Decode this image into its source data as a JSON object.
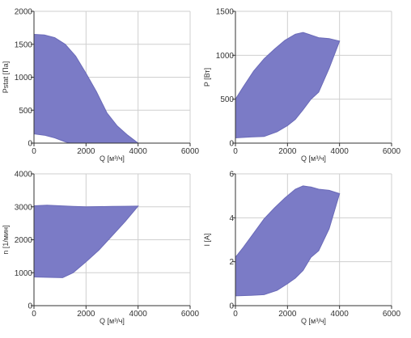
{
  "style": {
    "region_fill": "#7b7bc6",
    "region_stroke": "#6a6ab8",
    "grid": "#cfcfcf",
    "axis": "#333333"
  },
  "chart_data": [
    {
      "type": "area",
      "xlabel": "Q [м³/ч]",
      "ylabel": "Pstat [Па]",
      "xlim": [
        0,
        6000
      ],
      "ylim": [
        0,
        2000
      ],
      "xticks": [
        0,
        2000,
        4000,
        6000
      ],
      "yticks": [
        0,
        500,
        1000,
        1500,
        2000
      ],
      "grid": true,
      "region": [
        [
          0,
          1650
        ],
        [
          400,
          1640
        ],
        [
          800,
          1600
        ],
        [
          1200,
          1500
        ],
        [
          1600,
          1320
        ],
        [
          2000,
          1060
        ],
        [
          2400,
          780
        ],
        [
          2800,
          460
        ],
        [
          3200,
          260
        ],
        [
          3600,
          120
        ],
        [
          4000,
          0
        ],
        [
          3000,
          0
        ],
        [
          2400,
          0
        ],
        [
          1800,
          0
        ],
        [
          1400,
          0
        ],
        [
          1200,
          20
        ],
        [
          800,
          80
        ],
        [
          400,
          120
        ],
        [
          0,
          140
        ]
      ]
    },
    {
      "type": "area",
      "xlabel": "Q [м³/ч]",
      "ylabel": "P [Вт]",
      "xlim": [
        0,
        6000
      ],
      "ylim": [
        0,
        1500
      ],
      "xticks": [
        0,
        2000,
        4000,
        6000
      ],
      "yticks": [
        0,
        500,
        1000,
        1500
      ],
      "grid": true,
      "region": [
        [
          0,
          500
        ],
        [
          300,
          640
        ],
        [
          700,
          820
        ],
        [
          1100,
          960
        ],
        [
          1500,
          1070
        ],
        [
          1900,
          1170
        ],
        [
          2300,
          1240
        ],
        [
          2600,
          1260
        ],
        [
          2900,
          1230
        ],
        [
          3200,
          1200
        ],
        [
          3600,
          1190
        ],
        [
          4000,
          1160
        ],
        [
          3600,
          850
        ],
        [
          3200,
          580
        ],
        [
          2900,
          500
        ],
        [
          2600,
          380
        ],
        [
          2300,
          270
        ],
        [
          2000,
          200
        ],
        [
          1600,
          130
        ],
        [
          1100,
          75
        ],
        [
          600,
          70
        ],
        [
          0,
          60
        ]
      ]
    },
    {
      "type": "area",
      "xlabel": "Q [м³/ч]",
      "ylabel": "n [1/мин]",
      "xlim": [
        0,
        6000
      ],
      "ylim": [
        0,
        4000
      ],
      "xticks": [
        0,
        2000,
        4000,
        6000
      ],
      "yticks": [
        0,
        1000,
        2000,
        3000,
        4000
      ],
      "grid": true,
      "region": [
        [
          0,
          3030
        ],
        [
          500,
          3050
        ],
        [
          1000,
          3030
        ],
        [
          1500,
          3010
        ],
        [
          2000,
          3000
        ],
        [
          2500,
          3005
        ],
        [
          3000,
          3010
        ],
        [
          3500,
          3015
        ],
        [
          4000,
          3020
        ],
        [
          3500,
          2550
        ],
        [
          3000,
          2120
        ],
        [
          2500,
          1690
        ],
        [
          2000,
          1330
        ],
        [
          1500,
          1000
        ],
        [
          1100,
          850
        ],
        [
          600,
          860
        ],
        [
          0,
          870
        ]
      ]
    },
    {
      "type": "area",
      "xlabel": "Q [м³/ч]",
      "ylabel": "I [A]",
      "xlim": [
        0,
        6000
      ],
      "ylim": [
        0,
        6
      ],
      "xticks": [
        0,
        2000,
        4000,
        6000
      ],
      "yticks": [
        0,
        2,
        4,
        6
      ],
      "grid": true,
      "region": [
        [
          0,
          2.2
        ],
        [
          300,
          2.65
        ],
        [
          700,
          3.3
        ],
        [
          1100,
          3.95
        ],
        [
          1500,
          4.45
        ],
        [
          1900,
          4.9
        ],
        [
          2300,
          5.3
        ],
        [
          2600,
          5.45
        ],
        [
          2900,
          5.4
        ],
        [
          3200,
          5.3
        ],
        [
          3600,
          5.25
        ],
        [
          4000,
          5.1
        ],
        [
          3600,
          3.5
        ],
        [
          3200,
          2.5
        ],
        [
          2900,
          2.2
        ],
        [
          2600,
          1.6
        ],
        [
          2300,
          1.25
        ],
        [
          2000,
          1.0
        ],
        [
          1600,
          0.7
        ],
        [
          1100,
          0.5
        ],
        [
          600,
          0.47
        ],
        [
          0,
          0.45
        ]
      ]
    }
  ]
}
